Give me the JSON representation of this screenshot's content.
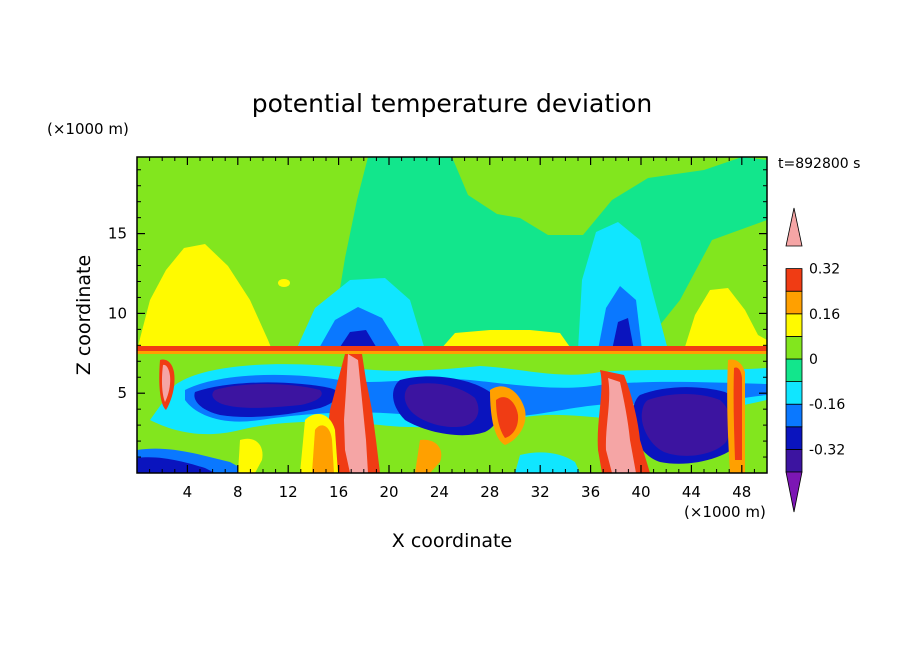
{
  "chart_data": {
    "type": "heatmap",
    "title": "potential temperature deviation",
    "time_label": "t=892800 s",
    "xlabel": "X coordinate",
    "ylabel": "Z coordinate",
    "x_unit": "(×1000 m)",
    "y_unit": "(×1000 m)",
    "xlim": [
      0,
      50
    ],
    "ylim": [
      0,
      19.8
    ],
    "xticks": [
      4,
      8,
      12,
      16,
      20,
      24,
      28,
      32,
      36,
      40,
      44,
      48
    ],
    "yticks": [
      5,
      10,
      15
    ],
    "colorbar": {
      "levels": [
        -0.4,
        -0.32,
        -0.24,
        -0.16,
        -0.08,
        0,
        0.08,
        0.16,
        0.24,
        0.32,
        0.4
      ],
      "colors": [
        "#7c16b4",
        "#3c14a0",
        "#0a14be",
        "#0a78ff",
        "#10e6ff",
        "#12e68c",
        "#82e61e",
        "#fffa00",
        "#ffa000",
        "#f03c14",
        "#f5a5a5"
      ],
      "under_color": "#7c16b4",
      "over_color": "#f5a5a5",
      "tick_labels": [
        "-0.32",
        "-0.16",
        "0",
        "0.16",
        "0.32"
      ],
      "tick_values": [
        -0.32,
        -0.16,
        0,
        0.16,
        0.32
      ]
    }
  }
}
